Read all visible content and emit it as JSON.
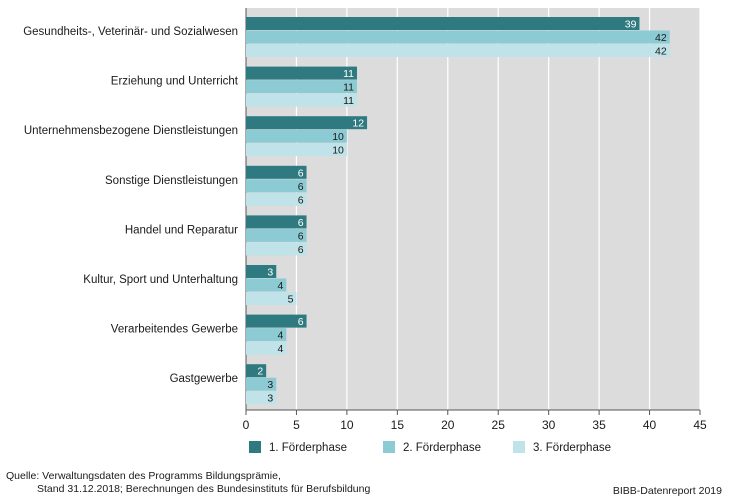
{
  "chart_data": {
    "type": "bar",
    "orientation": "horizontal",
    "categories": [
      "Gesundheits-, Veterinär- und Sozialwesen",
      "Erziehung und Unterricht",
      "Unternehmensbezogene Dienstleistungen",
      "Sonstige Dienstleistungen",
      "Handel und Reparatur",
      "Kultur, Sport und Unterhaltung",
      "Verarbeitendes Gewerbe",
      "Gastgewerbe"
    ],
    "series": [
      {
        "name": "1. Förderphase",
        "color": "#2f7a80",
        "values": [
          39,
          11,
          12,
          6,
          6,
          3,
          6,
          2
        ]
      },
      {
        "name": "2. Förderphase",
        "color": "#8ccbd3",
        "values": [
          42,
          11,
          10,
          6,
          6,
          4,
          4,
          3
        ]
      },
      {
        "name": "3. Förderphase",
        "color": "#bfe3e8",
        "values": [
          42,
          11,
          10,
          6,
          6,
          5,
          4,
          3
        ]
      }
    ],
    "xlim": [
      0,
      45
    ],
    "xticks": [
      0,
      5,
      10,
      15,
      20,
      25,
      30,
      35,
      40,
      45
    ],
    "grid": true,
    "legend_position": "bottom",
    "plot_background": "#dcdcdc"
  },
  "footer": {
    "source_line1": "Quelle: Verwaltungsdaten des Programms Bildungsprämie,",
    "source_line2": "Stand 31.12.2018; Berechnungen des Bundesinstituts für Berufsbildung",
    "brand": "BIBB-Datenreport 2019"
  }
}
